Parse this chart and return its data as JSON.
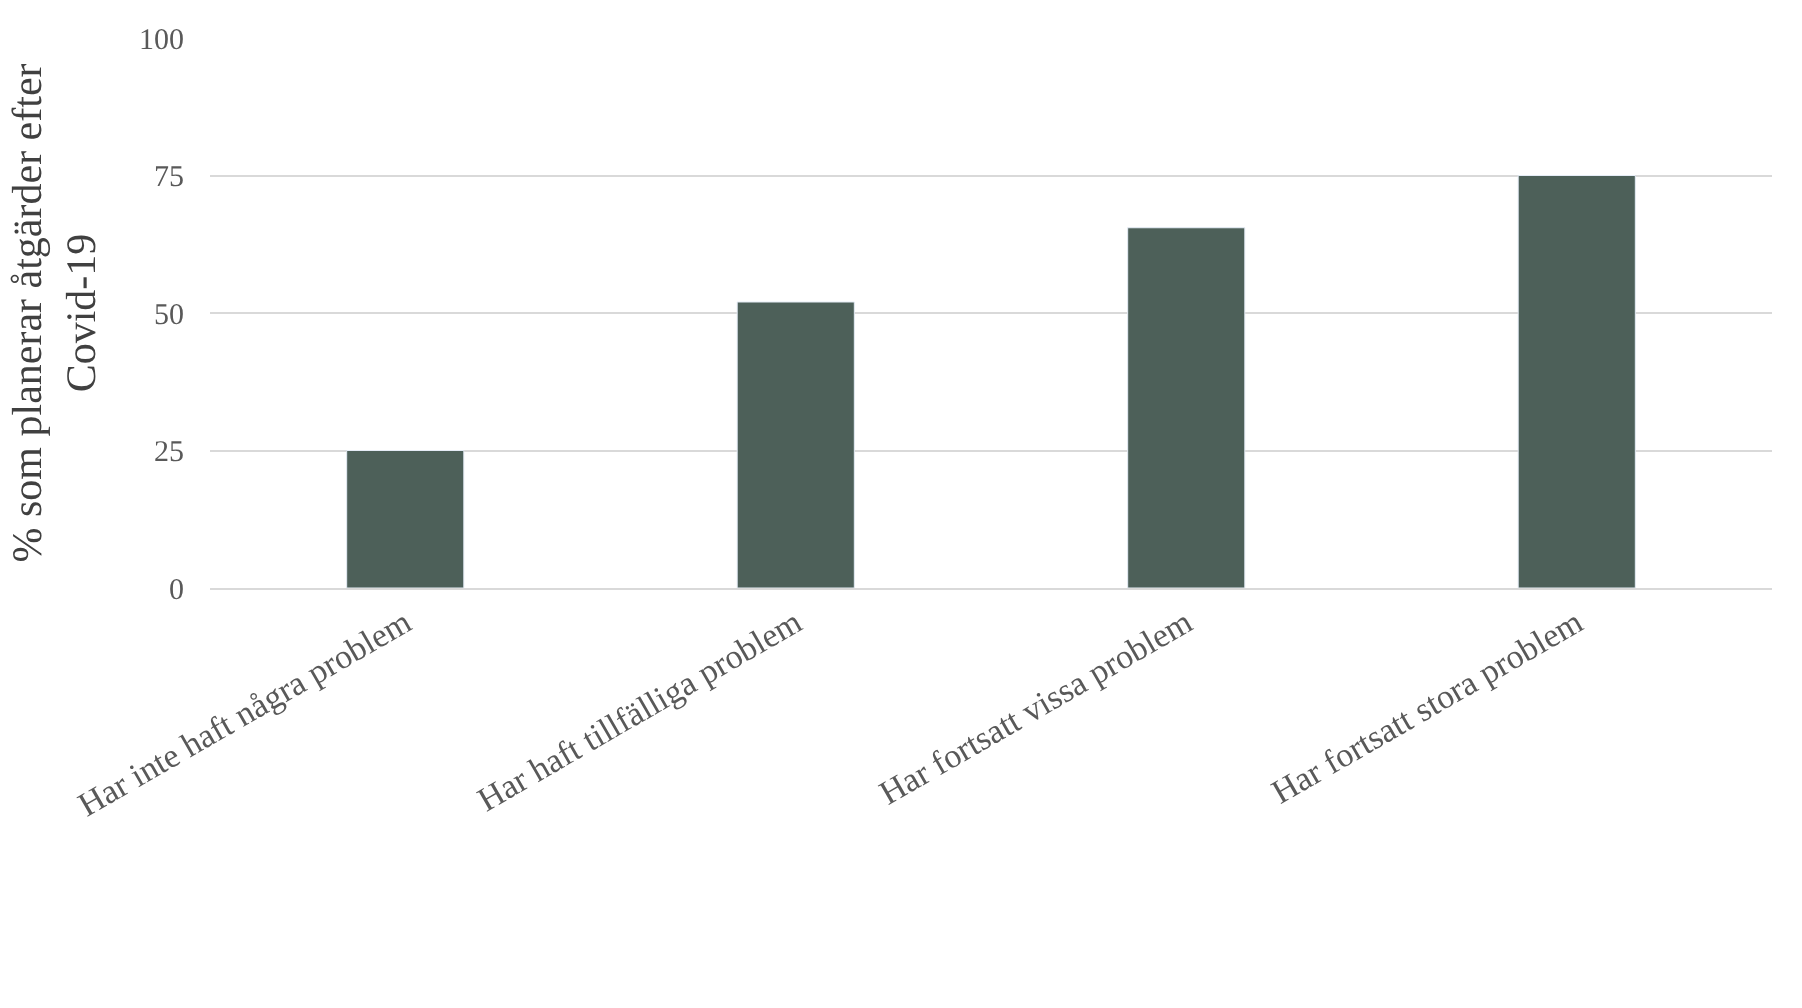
{
  "chart_data": {
    "type": "bar",
    "ylabel": "% som planerar åtgärder efter Covid-19",
    "categories": [
      "Har inte haft några problem",
      "Har haft tillfälliga problem",
      "Har fortsatt vissa problem",
      "Har fortsatt stora problem"
    ],
    "values": [
      25,
      52,
      65.5,
      75
    ],
    "color": "#4d6059",
    "ylim": [
      0,
      100
    ],
    "yticks": [
      0,
      25,
      50,
      75,
      100
    ],
    "grid": "y",
    "legend": false
  }
}
